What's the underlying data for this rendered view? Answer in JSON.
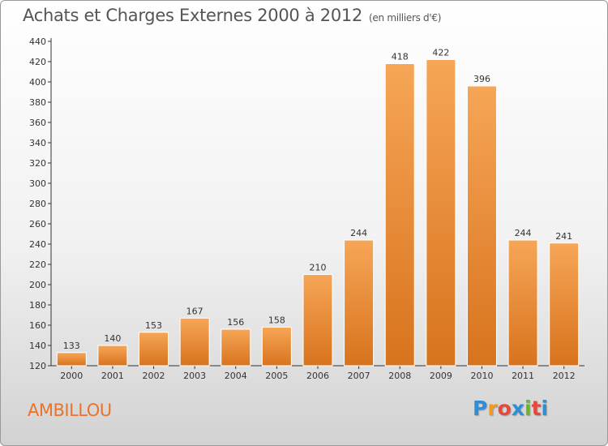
{
  "header": {
    "title": "Achats et Charges Externes 2000 à 2012",
    "unit": "(en milliers d'€)"
  },
  "footer": {
    "commune": "AMBILLOU",
    "logo_letters": [
      "P",
      "r",
      "o",
      "x",
      "i",
      "t",
      "i"
    ],
    "logo_colors": [
      "#2e8fd6",
      "#f29a1d",
      "#e8473c",
      "#2e8fd6",
      "#6bb52e",
      "#e8473c",
      "#2e8fd6"
    ]
  },
  "colors": {
    "bar_top": "#f6a657",
    "bar_bottom": "#d8731d",
    "bar_stroke": "#ffffff",
    "accent": "#e8742b"
  },
  "chart_data": {
    "type": "bar",
    "title": "Achats et Charges Externes 2000 à 2012",
    "subtitle": "(en milliers d'€)",
    "categories": [
      "2000",
      "2001",
      "2002",
      "2003",
      "2004",
      "2005",
      "2006",
      "2007",
      "2008",
      "2009",
      "2010",
      "2011",
      "2012"
    ],
    "values": [
      133,
      140,
      153,
      167,
      156,
      158,
      210,
      244,
      418,
      422,
      396,
      244,
      241
    ],
    "ylim": [
      120,
      440
    ],
    "yticks": [
      120,
      140,
      160,
      180,
      200,
      220,
      240,
      260,
      280,
      300,
      320,
      340,
      360,
      380,
      400,
      420,
      440
    ],
    "grid": false,
    "data_labels": true
  }
}
